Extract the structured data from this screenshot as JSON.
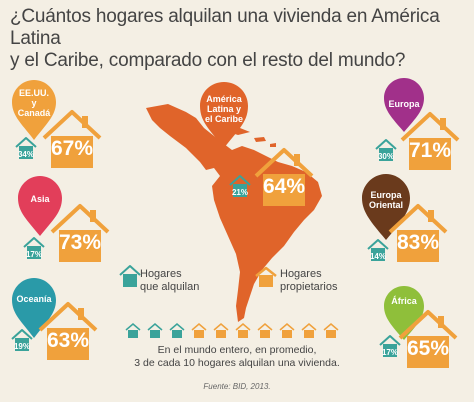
{
  "title_line1": "¿Cuántos hogares alquilan una vivienda en América Latina",
  "title_line2": "y el Caribe, comparado con el resto del mundo?",
  "colors": {
    "rent": "#3aa39a",
    "own": "#f0a13c",
    "map": "#e0642a",
    "background": "#f4efe4",
    "pin_eeuu": "#f0a13c",
    "pin_latam": "#e0642a",
    "pin_europa": "#a1308a",
    "pin_asia": "#e23e5a",
    "pin_europa_oriental": "#6a3a1c",
    "pin_oceania": "#2a9aa8",
    "pin_africa": "#8fbf3a"
  },
  "regions": {
    "eeuu": {
      "name_line1": "EE.UU.",
      "name_line2": "y",
      "name_line3": "Canadá",
      "rent": "34%",
      "own": "67%"
    },
    "latam": {
      "name_line1": "América",
      "name_line2": "Latina y",
      "name_line3": "el Caribe",
      "rent": "21%",
      "own": "64%"
    },
    "europa": {
      "name": "Europa",
      "rent": "30%",
      "own": "71%"
    },
    "asia": {
      "name": "Asia",
      "rent": "17%",
      "own": "73%"
    },
    "europa_oriental": {
      "name_line1": "Europa",
      "name_line2": "Oriental",
      "rent": "14%",
      "own": "83%"
    },
    "oceania": {
      "name": "Oceanía",
      "rent": "19%",
      "own": "63%"
    },
    "africa": {
      "name": "África",
      "rent": "17%",
      "own": "65%"
    }
  },
  "legend": {
    "rent_line1": "Hogares",
    "rent_line2": "que alquilan",
    "own_line1": "Hogares",
    "own_line2": "propietarios"
  },
  "summary_line1": "En el mundo entero, en promedio,",
  "summary_line2": "3 de cada 10 hogares alquilan una vivienda.",
  "source": "Fuente: BID, 2013."
}
